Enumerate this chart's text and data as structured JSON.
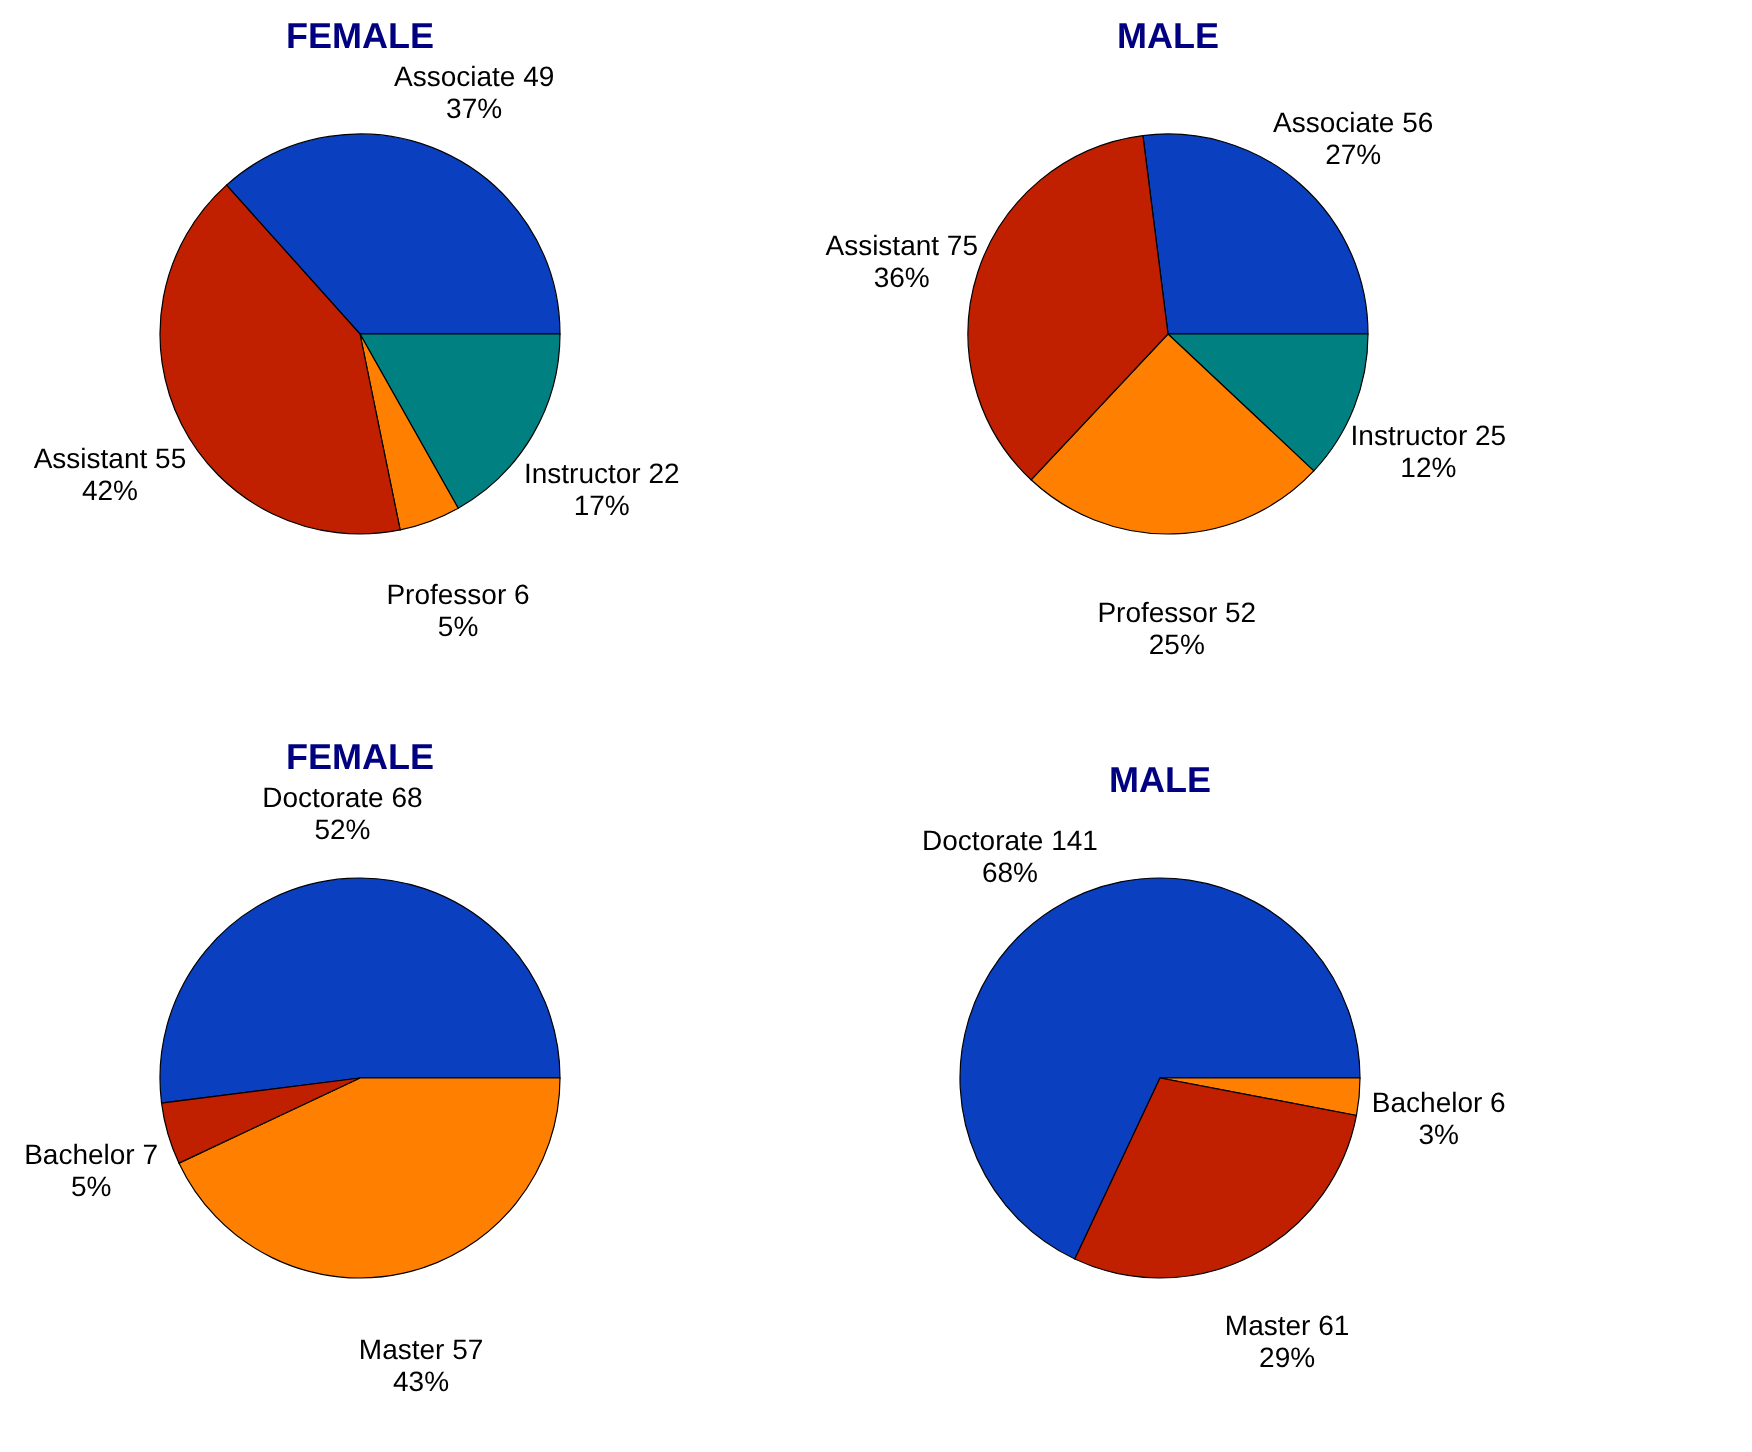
{
  "chart_data": [
    {
      "type": "pie",
      "title": "FEMALE",
      "categories": [
        "Associate  49",
        "Instructor  22",
        "Professor  6",
        "Assistant  55"
      ],
      "values": [
        37,
        17,
        5,
        42
      ],
      "colors": [
        "#0a3fbf",
        "#008080",
        "#ff8000",
        "#c02000"
      ],
      "value_labels": [
        "37%",
        "17%",
        "5%",
        "42%"
      ]
    },
    {
      "type": "pie",
      "title": "MALE",
      "categories": [
        "Associate  56",
        "Instructor  25",
        "Professor  52",
        "Assistant  75"
      ],
      "values": [
        27,
        12,
        25,
        36
      ],
      "colors": [
        "#0a3fbf",
        "#008080",
        "#ff8000",
        "#c02000"
      ],
      "value_labels": [
        "27%",
        "12%",
        "25%",
        "36%"
      ]
    },
    {
      "type": "pie",
      "title": "FEMALE",
      "categories": [
        "Doctorate  68",
        "Master  57",
        "Bachelor  7"
      ],
      "values": [
        52,
        43,
        5
      ],
      "colors": [
        "#0a3fbf",
        "#ff8000",
        "#c02000"
      ],
      "value_labels": [
        "52%",
        "43%",
        "5%"
      ]
    },
    {
      "type": "pie",
      "title": "MALE",
      "categories": [
        "Doctorate  141",
        "Bachelor  6",
        "Master  61"
      ],
      "values": [
        68,
        3,
        29
      ],
      "colors": [
        "#0a3fbf",
        "#ff8000",
        "#c02000"
      ],
      "value_labels": [
        "68%",
        "3%",
        "29%"
      ]
    }
  ]
}
